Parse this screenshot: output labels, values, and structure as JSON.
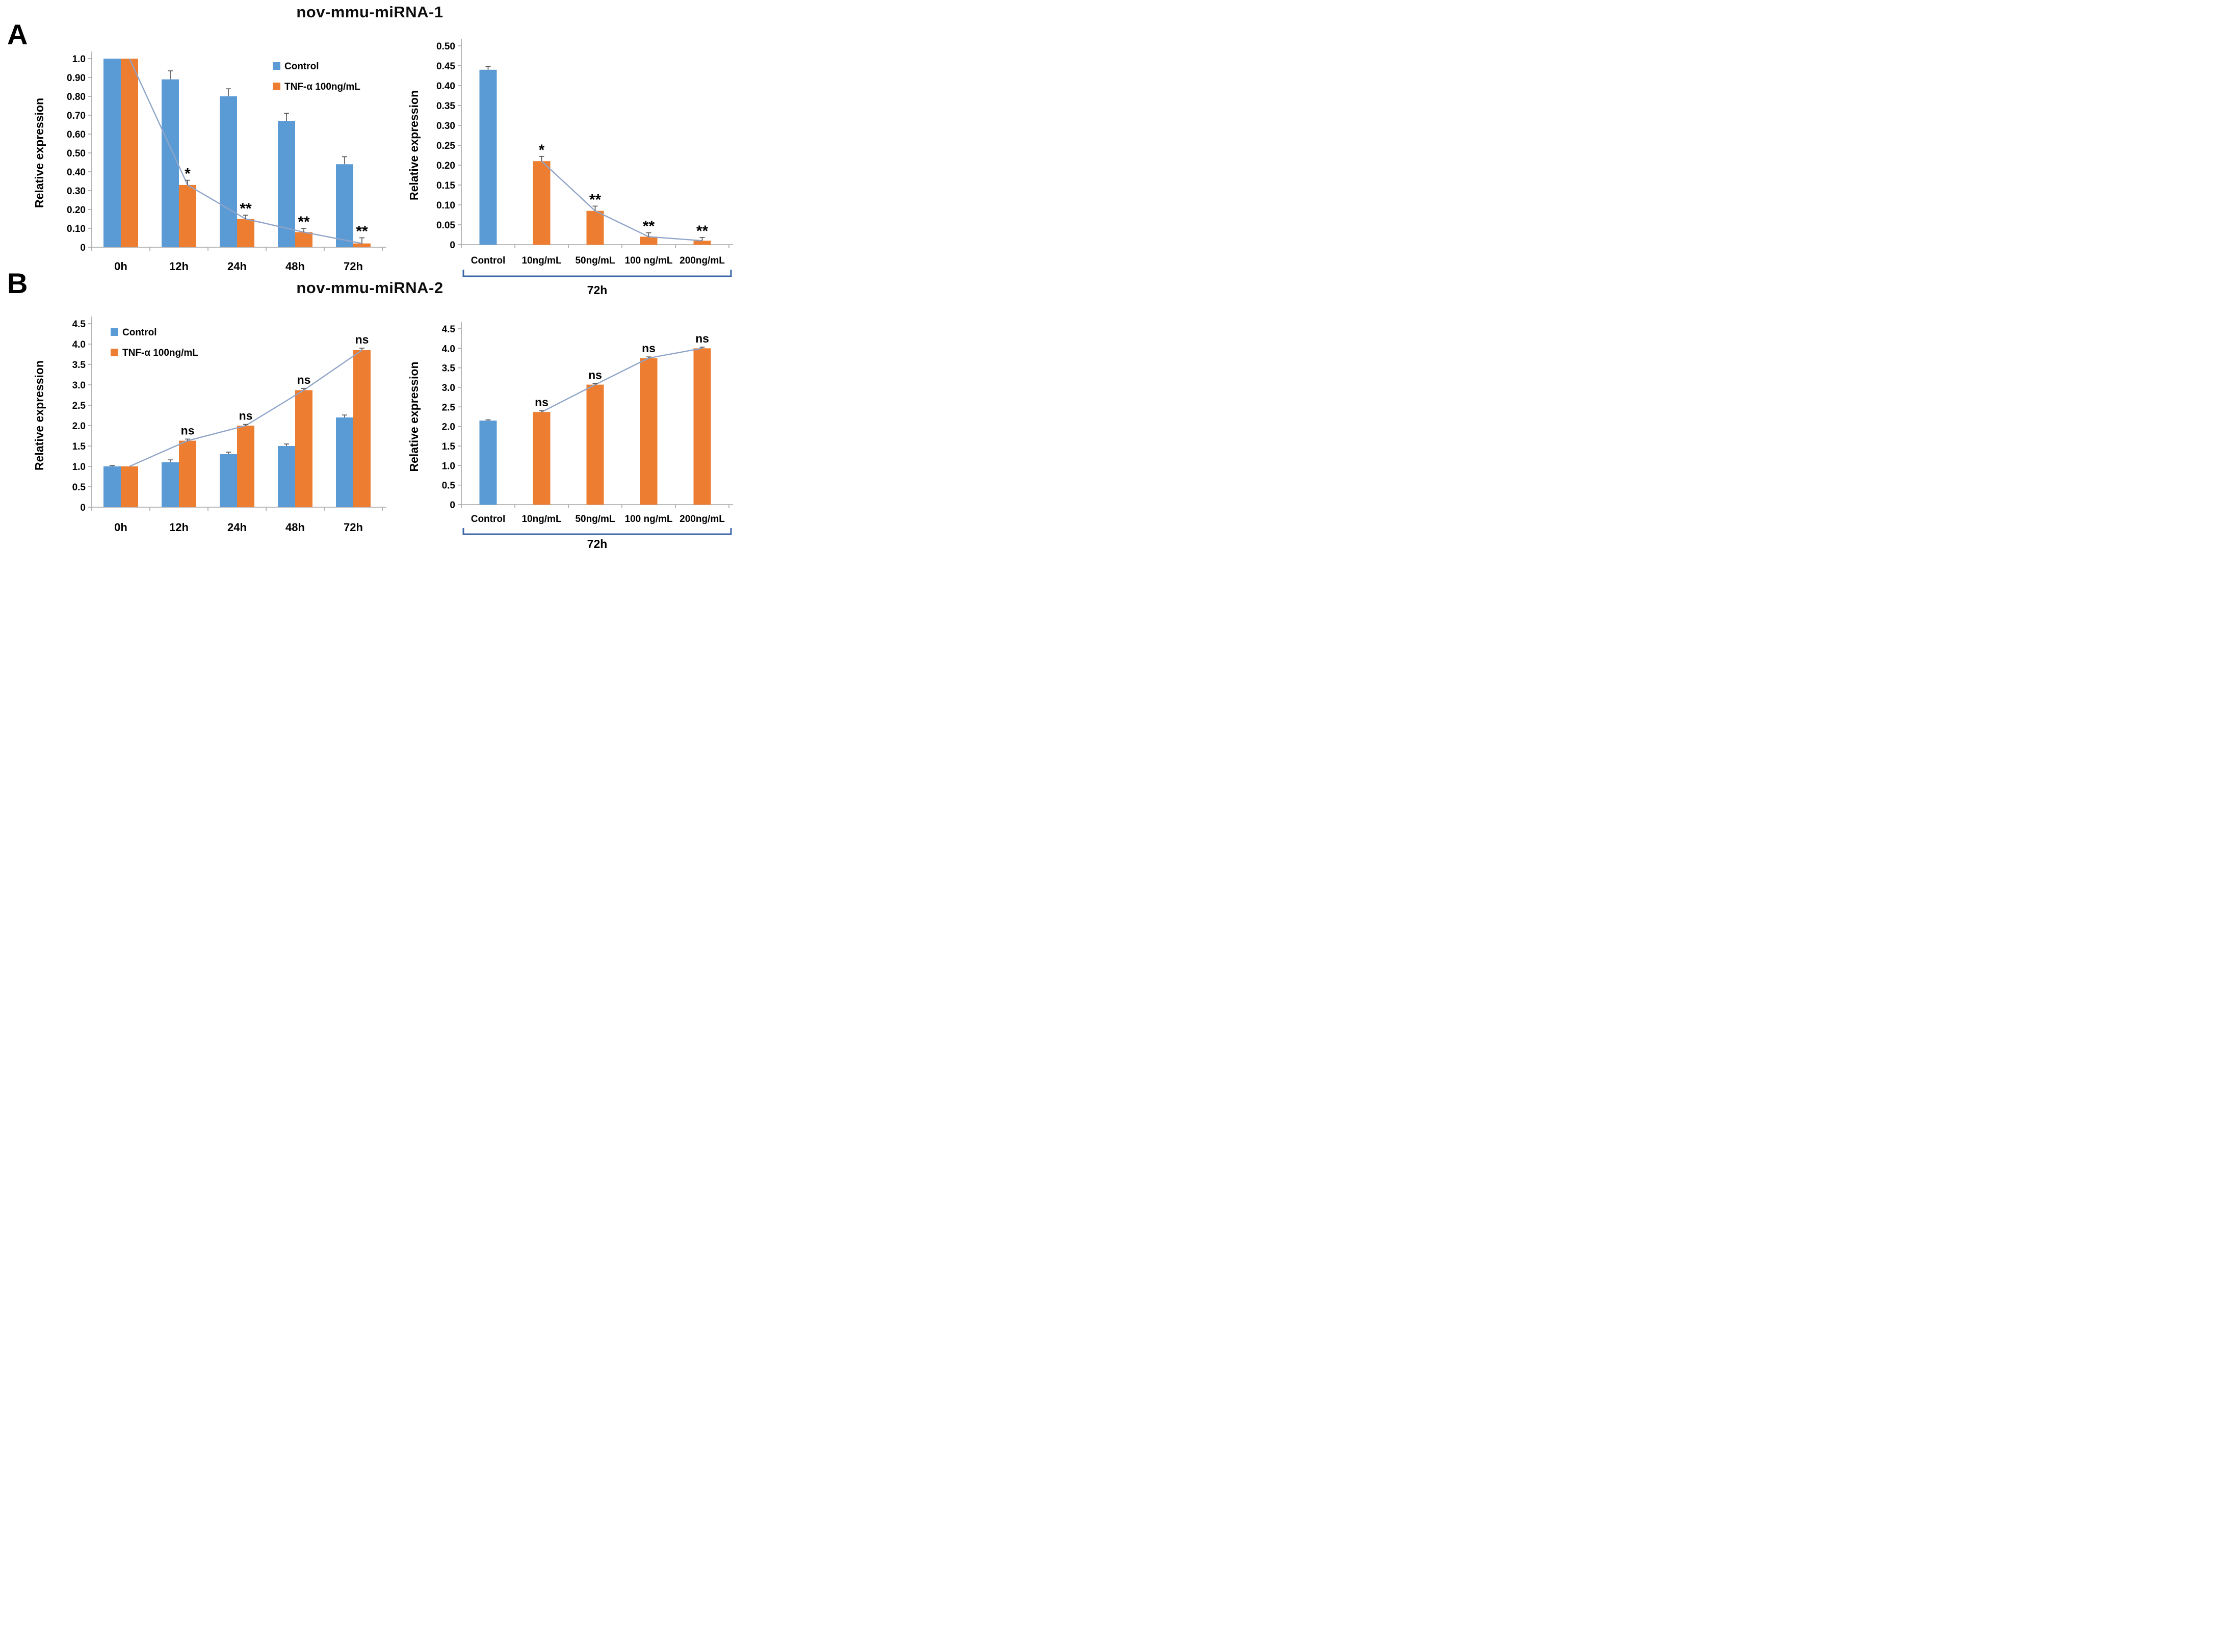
{
  "panels": {
    "a": "A",
    "b": "B"
  },
  "colors": {
    "bar_blue": "#5B9BD5",
    "bar_orange": "#ED7D31",
    "trend_line": "#8FA4C8",
    "error_bar": "#595959",
    "bracket": "#3A66A8",
    "axis": "#A6A6A6",
    "text": "#000000"
  },
  "chart_data": [
    {
      "id": "mirna1-timecourse",
      "type": "bar",
      "title": "nov-mmu-miRNA-1",
      "ylabel": "Relative expression",
      "categories": [
        "0h",
        "12h",
        "24h",
        "48h",
        "72h"
      ],
      "series": [
        {
          "name": "Control",
          "color": "bar_blue",
          "values": [
            1.0,
            0.89,
            0.8,
            0.67,
            0.44
          ],
          "errors": [
            0,
            0.045,
            0.04,
            0.04,
            0.04
          ]
        },
        {
          "name": "TNF-α 100ng/mL",
          "color": "bar_orange",
          "values": [
            1.0,
            0.33,
            0.15,
            0.08,
            0.02
          ],
          "errors": [
            0,
            0.025,
            0.02,
            0.02,
            0.03
          ]
        }
      ],
      "annotations": [
        "",
        "*",
        "**",
        "**",
        "**"
      ],
      "line_overlay": "follows TNF-α 100ng/mL series",
      "ylim": [
        0,
        1.0
      ],
      "ytick_values": [
        1.0,
        0.9,
        0.8,
        0.7,
        0.6,
        0.5,
        0.4,
        0.3,
        0.2,
        0.1,
        0
      ],
      "ytick_labels": [
        "1.0",
        "0.90",
        "0.80",
        "0.70",
        "0.60",
        "0.50",
        "0.40",
        "0.30",
        "0.20",
        "0.10",
        "0"
      ],
      "legend_position": "top-right",
      "grid": false
    },
    {
      "id": "mirna1-dose-72h",
      "type": "bar",
      "ylabel": "Relative expression",
      "categories": [
        "Control",
        "10ng/mL",
        "50ng/mL",
        "100 ng/mL",
        "200ng/mL"
      ],
      "values": [
        0.44,
        0.21,
        0.085,
        0.02,
        0.01
      ],
      "errors": [
        0.008,
        0.012,
        0.012,
        0.01,
        0.008
      ],
      "bar_colors": [
        "bar_blue",
        "bar_orange",
        "bar_orange",
        "bar_orange",
        "bar_orange"
      ],
      "annotations": [
        "",
        "*",
        "**",
        "**",
        "**"
      ],
      "line_start_index": 1,
      "ylim": [
        0,
        0.5
      ],
      "ytick_values": [
        0.5,
        0.45,
        0.4,
        0.35,
        0.3,
        0.25,
        0.2,
        0.15,
        0.1,
        0.05,
        0
      ],
      "ytick_labels": [
        "0.50",
        "0.45",
        "0.40",
        "0.35",
        "0.30",
        "0.25",
        "0.20",
        "0.15",
        "0.10",
        "0.05",
        "0"
      ],
      "bracket_label": "72h",
      "grid": false
    },
    {
      "id": "mirna2-timecourse",
      "type": "bar",
      "title": "nov-mmu-miRNA-2",
      "ylabel": "Relative expression",
      "categories": [
        "0h",
        "12h",
        "24h",
        "48h",
        "72h"
      ],
      "series": [
        {
          "name": "Control",
          "color": "bar_blue",
          "values": [
            1.0,
            1.1,
            1.3,
            1.5,
            2.2
          ],
          "errors": [
            0.02,
            0.06,
            0.05,
            0.05,
            0.06
          ]
        },
        {
          "name": "TNF-α 100ng/mL",
          "color": "bar_orange",
          "values": [
            1.0,
            1.63,
            2.0,
            2.87,
            3.85
          ],
          "errors": [
            0,
            0.04,
            0.03,
            0.04,
            0.05
          ]
        }
      ],
      "annotations": [
        "",
        "ns",
        "ns",
        "ns",
        "ns"
      ],
      "line_overlay": "follows TNF-α 100ng/mL series",
      "ylim": [
        0,
        4.5
      ],
      "ytick_values": [
        4.5,
        4.0,
        3.5,
        3.0,
        2.5,
        2.0,
        1.5,
        1.0,
        0.5,
        0
      ],
      "ytick_labels": [
        "4.5",
        "4.0",
        "3.5",
        "3.0",
        "2.5",
        "2.0",
        "1.5",
        "1.0",
        "0.5",
        "0"
      ],
      "legend_position": "top-left",
      "grid": false
    },
    {
      "id": "mirna2-dose-72h",
      "type": "bar",
      "ylabel": "Relative expression",
      "categories": [
        "Control",
        "10ng/mL",
        "50ng/mL",
        "100 ng/mL",
        "200ng/mL"
      ],
      "values": [
        2.15,
        2.37,
        3.07,
        3.75,
        4.0
      ],
      "errors": [
        0.02,
        0.03,
        0.03,
        0.03,
        0.03
      ],
      "bar_colors": [
        "bar_blue",
        "bar_orange",
        "bar_orange",
        "bar_orange",
        "bar_orange"
      ],
      "annotations": [
        "",
        "ns",
        "ns",
        "ns",
        "ns"
      ],
      "line_start_index": 1,
      "ylim": [
        0,
        4.5
      ],
      "ytick_values": [
        4.5,
        4.0,
        3.5,
        3.0,
        2.5,
        2.0,
        1.5,
        1.0,
        0.5,
        0
      ],
      "ytick_labels": [
        "4.5",
        "4.0",
        "3.5",
        "3.0",
        "2.5",
        "2.0",
        "1.5",
        "1.0",
        "0.5",
        "0"
      ],
      "bracket_label": "72h",
      "grid": false
    }
  ]
}
